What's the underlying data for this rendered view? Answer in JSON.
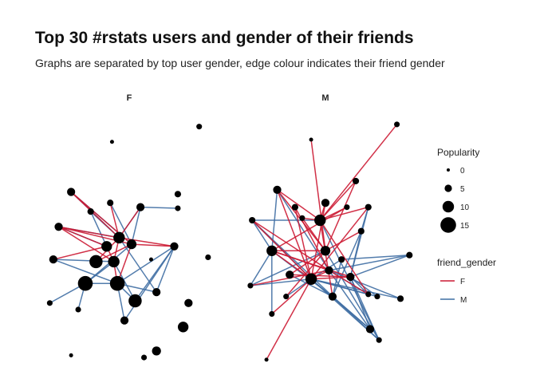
{
  "chart_data": {
    "type": "network",
    "title": "Top 30 #rstats users and gender of their friends",
    "subtitle": "Graphs are separated by top user gender, edge colour indicates their friend gender",
    "facets": [
      "F",
      "M"
    ],
    "legend_popularity": {
      "title": "Popularity",
      "breaks": [
        {
          "label": "0",
          "value": 0
        },
        {
          "label": "5",
          "value": 5
        },
        {
          "label": "10",
          "value": 10
        },
        {
          "label": "15",
          "value": 15
        }
      ]
    },
    "legend_gender": {
      "title": "friend_gender",
      "entries": [
        {
          "label": "F",
          "color": "#cc1a33"
        },
        {
          "label": "M",
          "color": "#3f6ea3"
        }
      ]
    },
    "colors": {
      "F": "#cc1a33",
      "M": "#3f6ea3",
      "node": "#000000"
    },
    "panels": [
      {
        "facet": "F",
        "nodes": [
          {
            "id": 0,
            "x": 0.9,
            "y": 0.95,
            "size": 3
          },
          {
            "id": 1,
            "x": 0.41,
            "y": 0.88,
            "size": 1
          },
          {
            "id": 2,
            "x": 0.18,
            "y": 0.65,
            "size": 6
          },
          {
            "id": 3,
            "x": 0.78,
            "y": 0.64,
            "size": 4
          },
          {
            "id": 4,
            "x": 0.29,
            "y": 0.56,
            "size": 4
          },
          {
            "id": 5,
            "x": 0.4,
            "y": 0.6,
            "size": 4
          },
          {
            "id": 6,
            "x": 0.57,
            "y": 0.58,
            "size": 6
          },
          {
            "id": 7,
            "x": 0.78,
            "y": 0.575,
            "size": 3
          },
          {
            "id": 8,
            "x": 0.11,
            "y": 0.49,
            "size": 6
          },
          {
            "id": 9,
            "x": 0.45,
            "y": 0.44,
            "size": 10
          },
          {
            "id": 10,
            "x": 0.38,
            "y": 0.4,
            "size": 9
          },
          {
            "id": 11,
            "x": 0.52,
            "y": 0.41,
            "size": 8
          },
          {
            "id": 12,
            "x": 0.76,
            "y": 0.4,
            "size": 6
          },
          {
            "id": 13,
            "x": 0.08,
            "y": 0.34,
            "size": 6
          },
          {
            "id": 14,
            "x": 0.32,
            "y": 0.33,
            "size": 12
          },
          {
            "id": 15,
            "x": 0.42,
            "y": 0.33,
            "size": 10
          },
          {
            "id": 16,
            "x": 0.63,
            "y": 0.34,
            "size": 1
          },
          {
            "id": 17,
            "x": 0.95,
            "y": 0.35,
            "size": 3
          },
          {
            "id": 18,
            "x": 0.26,
            "y": 0.23,
            "size": 14
          },
          {
            "id": 19,
            "x": 0.44,
            "y": 0.23,
            "size": 14
          },
          {
            "id": 20,
            "x": 0.66,
            "y": 0.19,
            "size": 6
          },
          {
            "id": 21,
            "x": 0.54,
            "y": 0.15,
            "size": 12
          },
          {
            "id": 22,
            "x": 0.06,
            "y": 0.14,
            "size": 3
          },
          {
            "id": 23,
            "x": 0.22,
            "y": 0.11,
            "size": 3
          },
          {
            "id": 24,
            "x": 0.84,
            "y": 0.14,
            "size": 6
          },
          {
            "id": 25,
            "x": 0.48,
            "y": 0.06,
            "size": 6
          },
          {
            "id": 26,
            "x": 0.81,
            "y": 0.03,
            "size": 9
          },
          {
            "id": 27,
            "x": 0.66,
            "y": -0.08,
            "size": 7
          },
          {
            "id": 28,
            "x": 0.59,
            "y": -0.11,
            "size": 3
          },
          {
            "id": 29,
            "x": 0.18,
            "y": -0.1,
            "size": 1
          }
        ],
        "edges_F": [
          [
            8,
            9
          ],
          [
            8,
            10
          ],
          [
            8,
            11
          ],
          [
            8,
            15
          ],
          [
            2,
            9
          ],
          [
            2,
            11
          ],
          [
            5,
            9
          ],
          [
            6,
            9
          ],
          [
            9,
            14
          ],
          [
            9,
            15
          ],
          [
            10,
            15
          ],
          [
            11,
            12
          ],
          [
            11,
            19
          ],
          [
            13,
            10
          ],
          [
            14,
            11
          ],
          [
            15,
            19
          ],
          [
            9,
            12
          ]
        ],
        "edges_M": [
          [
            2,
            9
          ],
          [
            2,
            11
          ],
          [
            4,
            9
          ],
          [
            4,
            10
          ],
          [
            5,
            11
          ],
          [
            6,
            7
          ],
          [
            6,
            11
          ],
          [
            6,
            9
          ],
          [
            8,
            10
          ],
          [
            8,
            9
          ],
          [
            13,
            15
          ],
          [
            13,
            19
          ],
          [
            18,
            15
          ],
          [
            18,
            19
          ],
          [
            12,
            19
          ],
          [
            12,
            21
          ],
          [
            15,
            21
          ],
          [
            19,
            21
          ],
          [
            19,
            20
          ],
          [
            12,
            20
          ],
          [
            12,
            25
          ],
          [
            22,
            18
          ],
          [
            23,
            18
          ],
          [
            19,
            25
          ],
          [
            9,
            20
          ],
          [
            11,
            18
          ]
        ]
      },
      {
        "facet": "M",
        "nodes": [
          {
            "id": 0,
            "x": 0.9,
            "y": 0.96,
            "size": 3
          },
          {
            "id": 1,
            "x": 0.42,
            "y": 0.89,
            "size": 1
          },
          {
            "id": 2,
            "x": 0.23,
            "y": 0.66,
            "size": 6
          },
          {
            "id": 3,
            "x": 0.67,
            "y": 0.7,
            "size": 4
          },
          {
            "id": 4,
            "x": 0.33,
            "y": 0.58,
            "size": 4
          },
          {
            "id": 5,
            "x": 0.5,
            "y": 0.6,
            "size": 6
          },
          {
            "id": 6,
            "x": 0.62,
            "y": 0.58,
            "size": 3
          },
          {
            "id": 7,
            "x": 0.74,
            "y": 0.58,
            "size": 4
          },
          {
            "id": 8,
            "x": 0.09,
            "y": 0.52,
            "size": 4
          },
          {
            "id": 9,
            "x": 0.47,
            "y": 0.52,
            "size": 10
          },
          {
            "id": 10,
            "x": 0.37,
            "y": 0.53,
            "size": 3
          },
          {
            "id": 11,
            "x": 0.7,
            "y": 0.47,
            "size": 4
          },
          {
            "id": 12,
            "x": 0.2,
            "y": 0.38,
            "size": 9
          },
          {
            "id": 13,
            "x": 0.5,
            "y": 0.38,
            "size": 8
          },
          {
            "id": 14,
            "x": 0.97,
            "y": 0.36,
            "size": 4
          },
          {
            "id": 15,
            "x": 0.59,
            "y": 0.34,
            "size": 4
          },
          {
            "id": 16,
            "x": 0.3,
            "y": 0.27,
            "size": 6
          },
          {
            "id": 17,
            "x": 0.42,
            "y": 0.25,
            "size": 10
          },
          {
            "id": 18,
            "x": 0.52,
            "y": 0.29,
            "size": 6
          },
          {
            "id": 19,
            "x": 0.64,
            "y": 0.26,
            "size": 6
          },
          {
            "id": 20,
            "x": 0.08,
            "y": 0.22,
            "size": 3
          },
          {
            "id": 21,
            "x": 0.74,
            "y": 0.18,
            "size": 3
          },
          {
            "id": 22,
            "x": 0.28,
            "y": 0.17,
            "size": 3
          },
          {
            "id": 23,
            "x": 0.54,
            "y": 0.17,
            "size": 6
          },
          {
            "id": 24,
            "x": 0.79,
            "y": 0.17,
            "size": 3
          },
          {
            "id": 25,
            "x": 0.92,
            "y": 0.16,
            "size": 4
          },
          {
            "id": 26,
            "x": 0.2,
            "y": 0.09,
            "size": 3
          },
          {
            "id": 27,
            "x": 0.75,
            "y": 0.02,
            "size": 6
          },
          {
            "id": 28,
            "x": 0.8,
            "y": -0.03,
            "size": 3
          },
          {
            "id": 29,
            "x": 0.17,
            "y": -0.12,
            "size": 1
          }
        ],
        "edges_F": [
          [
            0,
            9
          ],
          [
            1,
            13
          ],
          [
            2,
            9
          ],
          [
            2,
            17
          ],
          [
            2,
            13
          ],
          [
            3,
            9
          ],
          [
            3,
            13
          ],
          [
            4,
            17
          ],
          [
            4,
            18
          ],
          [
            5,
            9
          ],
          [
            5,
            17
          ],
          [
            6,
            12
          ],
          [
            6,
            9
          ],
          [
            7,
            9
          ],
          [
            7,
            17
          ],
          [
            8,
            17
          ],
          [
            8,
            18
          ],
          [
            10,
            13
          ],
          [
            10,
            9
          ],
          [
            12,
            17
          ],
          [
            12,
            18
          ],
          [
            12,
            13
          ],
          [
            16,
            19
          ],
          [
            16,
            13
          ],
          [
            17,
            19
          ],
          [
            17,
            18
          ],
          [
            18,
            21
          ],
          [
            22,
            13
          ],
          [
            23,
            9
          ],
          [
            29,
            17
          ],
          [
            26,
            17
          ],
          [
            20,
            18
          ],
          [
            9,
            21
          ],
          [
            12,
            19
          ],
          [
            11,
            13
          ]
        ],
        "edges_M": [
          [
            2,
            12
          ],
          [
            2,
            18
          ],
          [
            7,
            11
          ],
          [
            7,
            19
          ],
          [
            8,
            9
          ],
          [
            8,
            12
          ],
          [
            8,
            17
          ],
          [
            8,
            23
          ],
          [
            11,
            19
          ],
          [
            11,
            23
          ],
          [
            14,
            18
          ],
          [
            14,
            19
          ],
          [
            14,
            15
          ],
          [
            15,
            17
          ],
          [
            15,
            23
          ],
          [
            16,
            23
          ],
          [
            17,
            21
          ],
          [
            17,
            27
          ],
          [
            17,
            28
          ],
          [
            18,
            21
          ],
          [
            18,
            27
          ],
          [
            19,
            21
          ],
          [
            19,
            24
          ],
          [
            19,
            27
          ],
          [
            19,
            28
          ],
          [
            20,
            12
          ],
          [
            20,
            17
          ],
          [
            20,
            13
          ],
          [
            22,
            17
          ],
          [
            23,
            27
          ],
          [
            23,
            28
          ],
          [
            24,
            17
          ],
          [
            25,
            18
          ],
          [
            25,
            17
          ],
          [
            26,
            12
          ],
          [
            13,
            28
          ],
          [
            9,
            28
          ],
          [
            12,
            23
          ]
        ]
      }
    ]
  }
}
